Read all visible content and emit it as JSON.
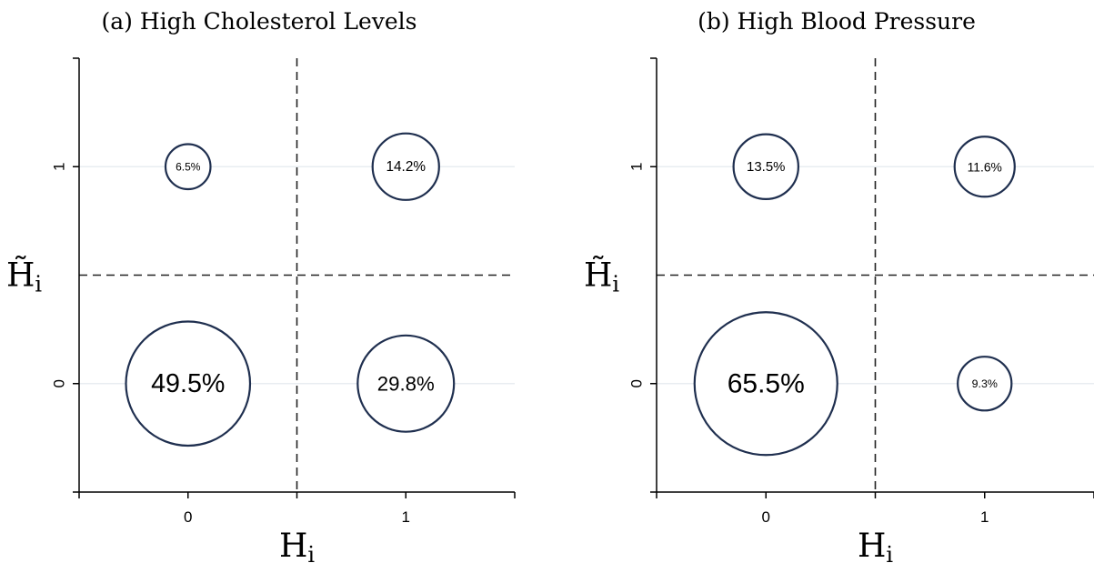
{
  "chart_data": [
    {
      "type": "scatter",
      "title": "(a) High Cholesterol Levels",
      "xlabel": "H",
      "xlabel_sub": "i",
      "ylabel": "H̃",
      "ylabel_sub": "i",
      "x_ticks": [
        "0",
        "1"
      ],
      "y_ticks": [
        "0",
        "1"
      ],
      "xlim": [
        -0.5,
        1.5
      ],
      "ylim": [
        -0.5,
        1.5
      ],
      "grid": true,
      "points": [
        {
          "x": 0,
          "y": 1,
          "value": 6.5,
          "label": "6.5%"
        },
        {
          "x": 1,
          "y": 1,
          "value": 14.2,
          "label": "14.2%"
        },
        {
          "x": 0,
          "y": 0,
          "value": 49.5,
          "label": "49.5%"
        },
        {
          "x": 1,
          "y": 0,
          "value": 29.8,
          "label": "29.8%"
        }
      ]
    },
    {
      "type": "scatter",
      "title": "(b) High Blood Pressure",
      "xlabel": "H",
      "xlabel_sub": "i",
      "ylabel": "H̃",
      "ylabel_sub": "i",
      "x_ticks": [
        "0",
        "1"
      ],
      "y_ticks": [
        "0",
        "1"
      ],
      "xlim": [
        -0.5,
        1.5
      ],
      "ylim": [
        -0.5,
        1.5
      ],
      "grid": true,
      "points": [
        {
          "x": 0,
          "y": 1,
          "value": 13.5,
          "label": "13.5%"
        },
        {
          "x": 1,
          "y": 1,
          "value": 11.6,
          "label": "11.6%"
        },
        {
          "x": 0,
          "y": 0,
          "value": 65.5,
          "label": "65.5%"
        },
        {
          "x": 1,
          "y": 0,
          "value": 9.3,
          "label": "9.3%"
        }
      ]
    }
  ],
  "style": {
    "circle_color": "#1f2f4f",
    "grid_color": "#e8edf1",
    "axis_color": "#000000"
  }
}
